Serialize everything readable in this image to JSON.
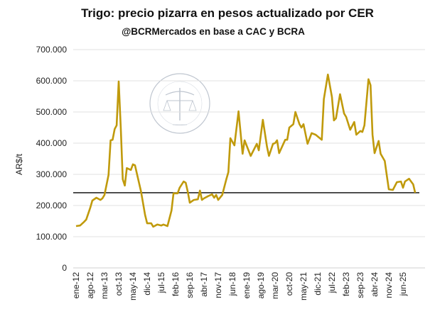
{
  "chart_data": {
    "type": "line",
    "title": "Trigo: precio pizarra en pesos actualizado por CER",
    "subtitle": "@BCRMercados en base a CAC y BCRA",
    "xlabel": "",
    "ylabel": "AR$/t",
    "ylim": [
      0,
      700000
    ],
    "xlim": [
      "2012-01",
      "2025-12"
    ],
    "grid": true,
    "line_color": "#c09a0c",
    "y_ticks": [
      "0",
      "100.000",
      "200.000",
      "300.000",
      "400.000",
      "500.000",
      "600.000",
      "700.000"
    ],
    "x_ticks": [
      "ene-12",
      "ago-12",
      "mar-13",
      "oct-13",
      "may-14",
      "dic-14",
      "jul-15",
      "feb-16",
      "sep-16",
      "abr-17",
      "nov-17",
      "jun-18",
      "ene-19",
      "ago-19",
      "mar-20",
      "oct-20",
      "may-21",
      "dic-21",
      "jul-22",
      "feb-23",
      "sep-23",
      "abr-24",
      "nov-24",
      "jun-25"
    ],
    "reference_line": {
      "value": 241000,
      "color": "#000000"
    },
    "watermark": "BOLSA DE COMERCIO DE ROSARIO",
    "series": [
      {
        "points": [
          [
            "2012-01",
            134000
          ],
          [
            "2012-03",
            136000
          ],
          [
            "2012-05",
            148000
          ],
          [
            "2012-06",
            155000
          ],
          [
            "2012-08",
            193000
          ],
          [
            "2012-09",
            216000
          ],
          [
            "2012-11",
            225000
          ],
          [
            "2013-01",
            218000
          ],
          [
            "2013-02",
            223000
          ],
          [
            "2013-03",
            234000
          ],
          [
            "2013-05",
            298000
          ],
          [
            "2013-06",
            409000
          ],
          [
            "2013-07",
            411000
          ],
          [
            "2013-08",
            445000
          ],
          [
            "2013-09",
            457000
          ],
          [
            "2013-10",
            598000
          ],
          [
            "2013-11",
            450000
          ],
          [
            "2013-12",
            284000
          ],
          [
            "2014-01",
            264000
          ],
          [
            "2014-02",
            320000
          ],
          [
            "2014-04",
            314000
          ],
          [
            "2014-05",
            332000
          ],
          [
            "2014-06",
            329000
          ],
          [
            "2014-09",
            245000
          ],
          [
            "2014-11",
            170000
          ],
          [
            "2014-12",
            143000
          ],
          [
            "2015-02",
            143000
          ],
          [
            "2015-03",
            132000
          ],
          [
            "2015-05",
            139000
          ],
          [
            "2015-07",
            136000
          ],
          [
            "2015-08",
            139000
          ],
          [
            "2015-10",
            134000
          ],
          [
            "2015-12",
            184000
          ],
          [
            "2016-01",
            239000
          ],
          [
            "2016-03",
            239000
          ],
          [
            "2016-04",
            257000
          ],
          [
            "2016-06",
            277000
          ],
          [
            "2016-07",
            273000
          ],
          [
            "2016-08",
            245000
          ],
          [
            "2016-09",
            209000
          ],
          [
            "2016-11",
            218000
          ],
          [
            "2017-01",
            220000
          ],
          [
            "2017-02",
            248000
          ],
          [
            "2017-03",
            218000
          ],
          [
            "2017-04",
            223000
          ],
          [
            "2017-06",
            230000
          ],
          [
            "2017-08",
            236000
          ],
          [
            "2017-09",
            225000
          ],
          [
            "2017-10",
            234000
          ],
          [
            "2017-11",
            218000
          ],
          [
            "2018-01",
            234000
          ],
          [
            "2018-03",
            284000
          ],
          [
            "2018-04",
            307000
          ],
          [
            "2018-05",
            416000
          ],
          [
            "2018-07",
            393000
          ],
          [
            "2018-09",
            502000
          ],
          [
            "2018-11",
            366000
          ],
          [
            "2018-12",
            409000
          ],
          [
            "2019-03",
            359000
          ],
          [
            "2019-06",
            398000
          ],
          [
            "2019-07",
            377000
          ],
          [
            "2019-09",
            475000
          ],
          [
            "2019-11",
            389000
          ],
          [
            "2019-12",
            359000
          ],
          [
            "2020-02",
            398000
          ],
          [
            "2020-03",
            400000
          ],
          [
            "2020-04",
            409000
          ],
          [
            "2020-05",
            368000
          ],
          [
            "2020-08",
            411000
          ],
          [
            "2020-09",
            411000
          ],
          [
            "2020-10",
            450000
          ],
          [
            "2020-12",
            461000
          ],
          [
            "2021-01",
            500000
          ],
          [
            "2021-03",
            461000
          ],
          [
            "2021-04",
            450000
          ],
          [
            "2021-05",
            461000
          ],
          [
            "2021-07",
            398000
          ],
          [
            "2021-09",
            432000
          ],
          [
            "2021-11",
            427000
          ],
          [
            "2022-02",
            411000
          ],
          [
            "2022-03",
            541000
          ],
          [
            "2022-05",
            620000
          ],
          [
            "2022-07",
            548000
          ],
          [
            "2022-08",
            473000
          ],
          [
            "2022-09",
            480000
          ],
          [
            "2022-11",
            557000
          ],
          [
            "2023-01",
            495000
          ],
          [
            "2023-02",
            484000
          ],
          [
            "2023-04",
            443000
          ],
          [
            "2023-06",
            468000
          ],
          [
            "2023-07",
            427000
          ],
          [
            "2023-09",
            439000
          ],
          [
            "2023-10",
            436000
          ],
          [
            "2023-11",
            457000
          ],
          [
            "2024-01",
            605000
          ],
          [
            "2024-02",
            586000
          ],
          [
            "2024-03",
            427000
          ],
          [
            "2024-04",
            368000
          ],
          [
            "2024-06",
            407000
          ],
          [
            "2024-07",
            366000
          ],
          [
            "2024-09",
            343000
          ],
          [
            "2024-10",
            298000
          ],
          [
            "2024-11",
            252000
          ],
          [
            "2025-01",
            250000
          ],
          [
            "2025-03",
            275000
          ],
          [
            "2025-05",
            277000
          ],
          [
            "2025-06",
            257000
          ],
          [
            "2025-07",
            277000
          ],
          [
            "2025-09",
            286000
          ],
          [
            "2025-11",
            268000
          ],
          [
            "2025-12",
            241000
          ]
        ]
      }
    ]
  }
}
